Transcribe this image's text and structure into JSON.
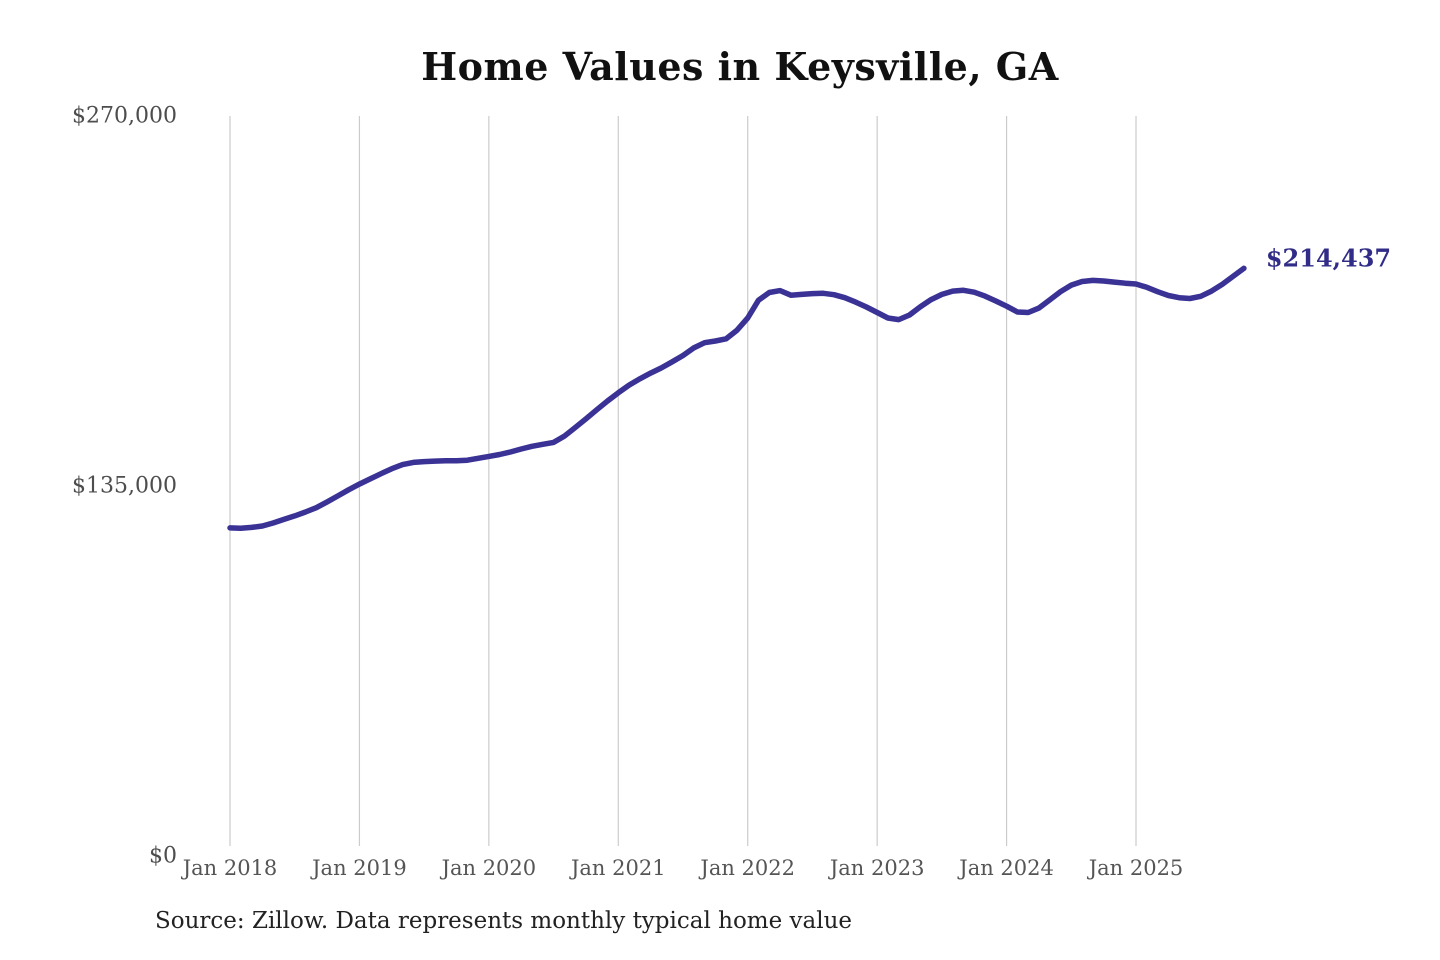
{
  "title": "Home Values in Keysville, GA",
  "source": "Source: Zillow. Data represents monthly typical home value",
  "chart_data": {
    "type": "line",
    "title": "Home Values in Keysville, GA",
    "series_name": "Monthly typical home value",
    "x_start": "2018-01",
    "x_end": "2025-11",
    "frequency": "monthly",
    "x_tick_labels": [
      "Jan 2018",
      "Jan 2019",
      "Jan 2020",
      "Jan 2021",
      "Jan 2022",
      "Jan 2023",
      "Jan 2024",
      "Jan 2025"
    ],
    "y_ticks": [
      {
        "label": "$270,000",
        "value": 270000
      },
      {
        "label": "$135,000",
        "value": 135000
      },
      {
        "label": "$0",
        "value": 0
      }
    ],
    "ylim": [
      0,
      270000
    ],
    "grid": "vertical-only",
    "end_label": "$214,437",
    "end_value": 214437,
    "values": [
      119700,
      119600,
      119900,
      120400,
      121500,
      122800,
      124100,
      125500,
      127100,
      129200,
      131400,
      133600,
      135700,
      137600,
      139500,
      141300,
      142800,
      143600,
      143900,
      144100,
      144200,
      144200,
      144400,
      145100,
      145800,
      146500,
      147400,
      148500,
      149500,
      150200,
      150900,
      153200,
      156300,
      159500,
      162800,
      166000,
      169000,
      171800,
      174100,
      176200,
      178100,
      180300,
      182600,
      185400,
      187300,
      187900,
      188700,
      191800,
      196300,
      202800,
      205600,
      206300,
      204600,
      204900,
      205200,
      205300,
      204800,
      203700,
      202100,
      200300,
      198300,
      196300,
      195700,
      197400,
      200400,
      203000,
      204900,
      206100,
      206400,
      205700,
      204300,
      202500,
      200600,
      198500,
      198300,
      199900,
      202900,
      205900,
      208300,
      209600,
      210000,
      209800,
      209400,
      209000,
      208700,
      207500,
      205900,
      204500,
      203700,
      203400,
      204200,
      206100,
      208600,
      211500,
      214437
    ],
    "colors": {
      "line": "#3a3295",
      "end_label": "#312c87",
      "gridline": "#cccccc",
      "axis_text": "#555555",
      "title": "#111111",
      "source_text": "#222222"
    }
  }
}
